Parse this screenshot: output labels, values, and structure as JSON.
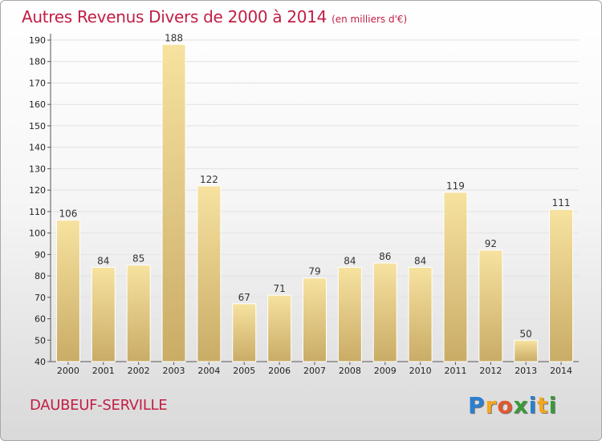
{
  "chart_data": {
    "type": "bar",
    "title": "Autres Revenus Divers de 2000 à 2014",
    "subtitle": "(en milliers d'€)",
    "categories": [
      "2000",
      "2001",
      "2002",
      "2003",
      "2004",
      "2005",
      "2006",
      "2007",
      "2008",
      "2009",
      "2010",
      "2011",
      "2012",
      "2013",
      "2014"
    ],
    "values": [
      106,
      84,
      85,
      188,
      122,
      67,
      71,
      79,
      84,
      86,
      84,
      119,
      92,
      50,
      111
    ],
    "ylim": [
      40,
      190
    ],
    "yticks": [
      40,
      50,
      60,
      70,
      80,
      90,
      100,
      110,
      120,
      130,
      140,
      150,
      160,
      170,
      180,
      190
    ],
    "grid": true,
    "bar_color_top": "#f7e2a0",
    "bar_color_bottom": "#c9ac66"
  },
  "commune": "DAUBEUF-SERVILLE",
  "logo": {
    "letters": [
      "P",
      "r",
      "o",
      "x",
      "i",
      "t",
      "i"
    ],
    "colors": [
      "#2b7fd0",
      "#f2a81e",
      "#e4572e",
      "#3a9a3a",
      "#2b7fd0",
      "#f2a81e",
      "#3a9a3a"
    ]
  },
  "colors": {
    "accent": "#c21e44"
  }
}
